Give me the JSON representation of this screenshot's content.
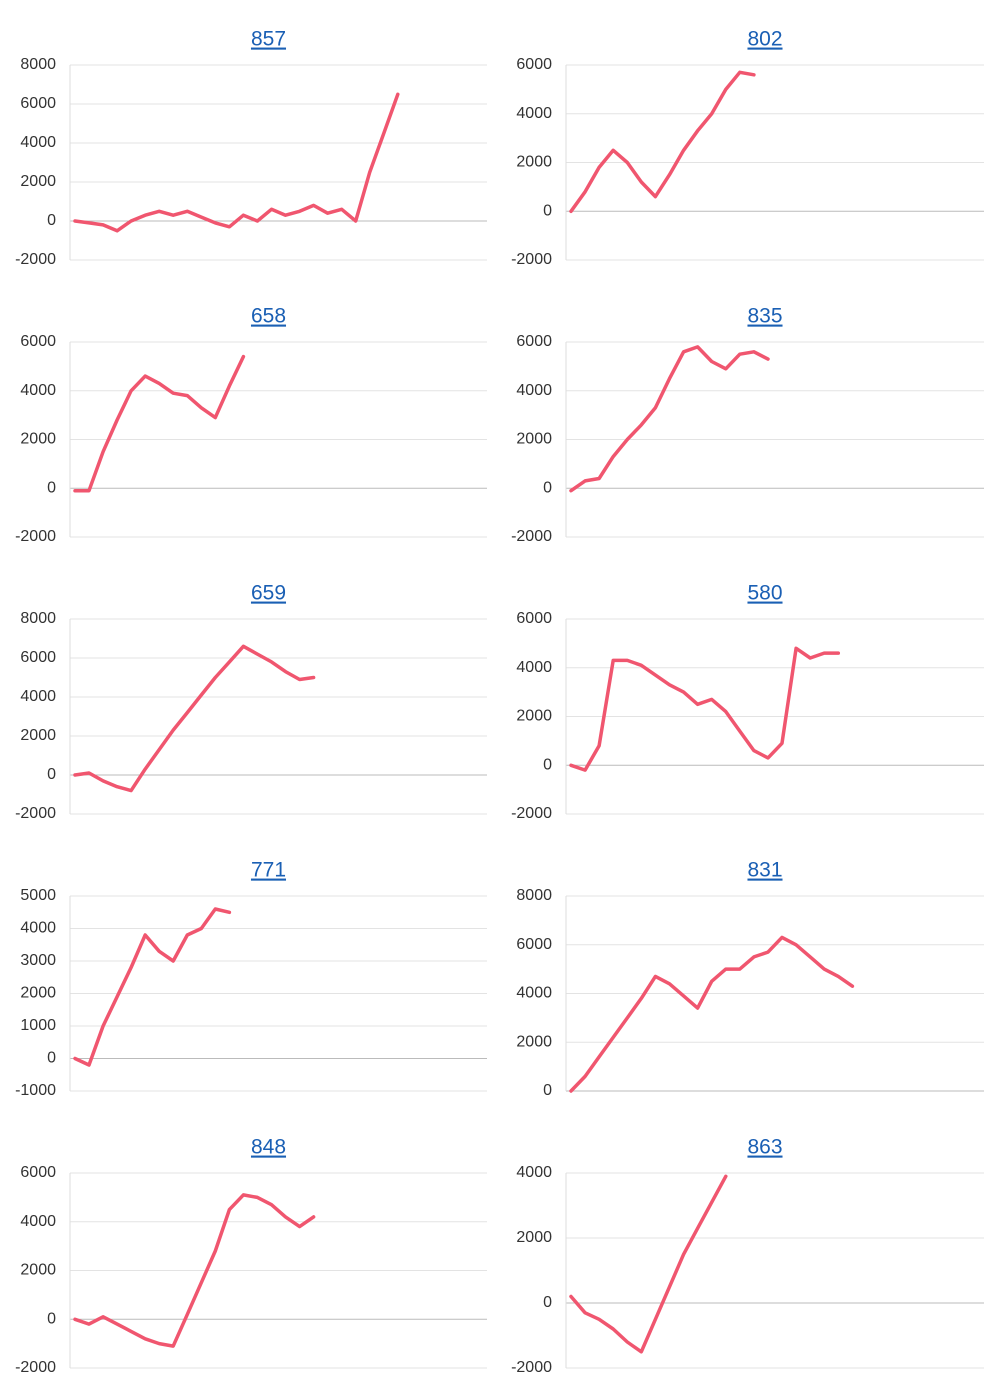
{
  "chart_data": [
    {
      "type": "line",
      "title": "857",
      "color": "#f0566f",
      "grid": true,
      "ylim": [
        -2000,
        8000
      ],
      "yticks": [
        -2000,
        0,
        2000,
        4000,
        6000,
        8000
      ],
      "categories": [
        null,
        null,
        null,
        null,
        null,
        null,
        null,
        null,
        null,
        null,
        null,
        null,
        null,
        null,
        null,
        null,
        null,
        null,
        null,
        null,
        null,
        null,
        null,
        null,
        null,
        null,
        null,
        null,
        null,
        null
      ],
      "values": [
        0,
        -100,
        -200,
        -500,
        0,
        300,
        500,
        300,
        500,
        200,
        -100,
        -300,
        300,
        0,
        600,
        300,
        500,
        800,
        400,
        600,
        0,
        2500,
        4500,
        6500,
        null,
        null,
        null,
        null,
        null,
        null
      ]
    },
    {
      "type": "line",
      "title": "802",
      "color": "#f0566f",
      "grid": true,
      "ylim": [
        -2000,
        6000
      ],
      "yticks": [
        -2000,
        0,
        2000,
        4000,
        6000
      ],
      "categories": [
        null,
        null,
        null,
        null,
        null,
        null,
        null,
        null,
        null,
        null,
        null,
        null,
        null,
        null,
        null,
        null,
        null,
        null,
        null,
        null,
        null,
        null,
        null,
        null,
        null,
        null,
        null,
        null,
        null,
        null
      ],
      "values": [
        0,
        800,
        1800,
        2500,
        2000,
        1200,
        600,
        1500,
        2500,
        3300,
        4000,
        5000,
        5700,
        5600,
        null,
        null,
        null,
        null,
        null,
        null,
        null,
        null,
        null,
        null,
        null,
        null,
        null,
        null,
        null,
        null
      ]
    },
    {
      "type": "line",
      "title": "658",
      "color": "#f0566f",
      "grid": true,
      "ylim": [
        -2000,
        6000
      ],
      "yticks": [
        -2000,
        0,
        2000,
        4000,
        6000
      ],
      "categories": [
        null,
        null,
        null,
        null,
        null,
        null,
        null,
        null,
        null,
        null,
        null,
        null,
        null,
        null,
        null,
        null,
        null,
        null,
        null,
        null,
        null,
        null,
        null,
        null,
        null,
        null,
        null,
        null,
        null,
        null
      ],
      "values": [
        -100,
        -100,
        1500,
        2800,
        4000,
        4600,
        4300,
        3900,
        3800,
        3300,
        2900,
        4200,
        5400,
        null,
        null,
        null,
        null,
        null,
        null,
        null,
        null,
        null,
        null,
        null,
        null,
        null,
        null,
        null,
        null,
        null
      ]
    },
    {
      "type": "line",
      "title": "835",
      "color": "#f0566f",
      "grid": true,
      "ylim": [
        -2000,
        6000
      ],
      "yticks": [
        -2000,
        0,
        2000,
        4000,
        6000
      ],
      "categories": [
        null,
        null,
        null,
        null,
        null,
        null,
        null,
        null,
        null,
        null,
        null,
        null,
        null,
        null,
        null,
        null,
        null,
        null,
        null,
        null,
        null,
        null,
        null,
        null,
        null,
        null,
        null,
        null,
        null,
        null
      ],
      "values": [
        -100,
        300,
        400,
        1300,
        2000,
        2600,
        3300,
        4500,
        5600,
        5800,
        5200,
        4900,
        5500,
        5600,
        5300,
        null,
        null,
        null,
        null,
        null,
        null,
        null,
        null,
        null,
        null,
        null,
        null,
        null,
        null,
        null
      ]
    },
    {
      "type": "line",
      "title": "659",
      "color": "#f0566f",
      "grid": true,
      "ylim": [
        -2000,
        8000
      ],
      "yticks": [
        -2000,
        0,
        2000,
        4000,
        6000,
        8000
      ],
      "categories": [
        null,
        null,
        null,
        null,
        null,
        null,
        null,
        null,
        null,
        null,
        null,
        null,
        null,
        null,
        null,
        null,
        null,
        null,
        null,
        null,
        null,
        null,
        null,
        null,
        null,
        null,
        null,
        null,
        null,
        null
      ],
      "values": [
        0,
        100,
        -300,
        -600,
        -800,
        300,
        1300,
        2300,
        3200,
        4100,
        5000,
        5800,
        6600,
        6200,
        5800,
        5300,
        4900,
        5000,
        null,
        null,
        null,
        null,
        null,
        null,
        null,
        null,
        null,
        null,
        null,
        null
      ]
    },
    {
      "type": "line",
      "title": "580",
      "color": "#f0566f",
      "grid": true,
      "ylim": [
        -2000,
        6000
      ],
      "yticks": [
        -2000,
        0,
        2000,
        4000,
        6000
      ],
      "categories": [
        null,
        null,
        null,
        null,
        null,
        null,
        null,
        null,
        null,
        null,
        null,
        null,
        null,
        null,
        null,
        null,
        null,
        null,
        null,
        null,
        null,
        null,
        null,
        null,
        null,
        null,
        null,
        null,
        null,
        null
      ],
      "values": [
        0,
        -200,
        800,
        4300,
        4300,
        4100,
        3700,
        3300,
        3000,
        2500,
        2700,
        2200,
        1400,
        600,
        300,
        900,
        4800,
        4400,
        4600,
        4600,
        null,
        null,
        null,
        null,
        null,
        null,
        null,
        null,
        null,
        null
      ]
    },
    {
      "type": "line",
      "title": "771",
      "color": "#f0566f",
      "grid": true,
      "ylim": [
        -1000,
        5000
      ],
      "yticks": [
        -1000,
        0,
        1000,
        2000,
        3000,
        4000,
        5000
      ],
      "categories": [
        null,
        null,
        null,
        null,
        null,
        null,
        null,
        null,
        null,
        null,
        null,
        null,
        null,
        null,
        null,
        null,
        null,
        null,
        null,
        null,
        null,
        null,
        null,
        null,
        null,
        null,
        null,
        null,
        null,
        null
      ],
      "values": [
        0,
        -200,
        1000,
        1900,
        2800,
        3800,
        3300,
        3000,
        3800,
        4000,
        4600,
        4500,
        null,
        null,
        null,
        null,
        null,
        null,
        null,
        null,
        null,
        null,
        null,
        null,
        null,
        null,
        null,
        null,
        null,
        null
      ]
    },
    {
      "type": "line",
      "title": "831",
      "color": "#f0566f",
      "grid": true,
      "ylim": [
        0,
        8000
      ],
      "yticks": [
        0,
        2000,
        4000,
        6000,
        8000
      ],
      "categories": [
        null,
        null,
        null,
        null,
        null,
        null,
        null,
        null,
        null,
        null,
        null,
        null,
        null,
        null,
        null,
        null,
        null,
        null,
        null,
        null,
        null,
        null,
        null,
        null,
        null,
        null,
        null,
        null,
        null,
        null
      ],
      "values": [
        0,
        600,
        1400,
        2200,
        3000,
        3800,
        4700,
        4400,
        3900,
        3400,
        4500,
        5000,
        5000,
        5500,
        5700,
        6300,
        6000,
        5500,
        5000,
        4700,
        4300,
        null,
        null,
        null,
        null,
        null,
        null,
        null,
        null,
        null
      ]
    },
    {
      "type": "line",
      "title": "848",
      "color": "#f0566f",
      "grid": true,
      "ylim": [
        -2000,
        6000
      ],
      "yticks": [
        -2000,
        0,
        2000,
        4000,
        6000
      ],
      "categories": [
        null,
        null,
        null,
        null,
        null,
        null,
        null,
        null,
        null,
        null,
        null,
        null,
        null,
        null,
        null,
        null,
        null,
        null,
        null,
        null,
        null,
        null,
        null,
        null,
        null,
        null,
        null,
        null,
        null,
        null
      ],
      "values": [
        0,
        -200,
        100,
        -200,
        -500,
        -800,
        -1000,
        -1100,
        200,
        1500,
        2800,
        4500,
        5100,
        5000,
        4700,
        4200,
        3800,
        4200,
        null,
        null,
        null,
        null,
        null,
        null,
        null,
        null,
        null,
        null,
        null,
        null
      ]
    },
    {
      "type": "line",
      "title": "863",
      "color": "#f0566f",
      "grid": true,
      "ylim": [
        -2000,
        4000
      ],
      "yticks": [
        -2000,
        0,
        2000,
        4000
      ],
      "categories": [
        null,
        null,
        null,
        null,
        null,
        null,
        null,
        null,
        null,
        null,
        null,
        null,
        null,
        null,
        null,
        null,
        null,
        null,
        null,
        null,
        null,
        null,
        null,
        null,
        null,
        null,
        null,
        null,
        null,
        null
      ],
      "values": [
        200,
        -300,
        -500,
        -800,
        -1200,
        -1500,
        -500,
        500,
        1500,
        2300,
        3100,
        3900,
        null,
        null,
        null,
        null,
        null,
        null,
        null,
        null,
        null,
        null,
        null,
        null,
        null,
        null,
        null,
        null,
        null,
        null
      ]
    }
  ]
}
